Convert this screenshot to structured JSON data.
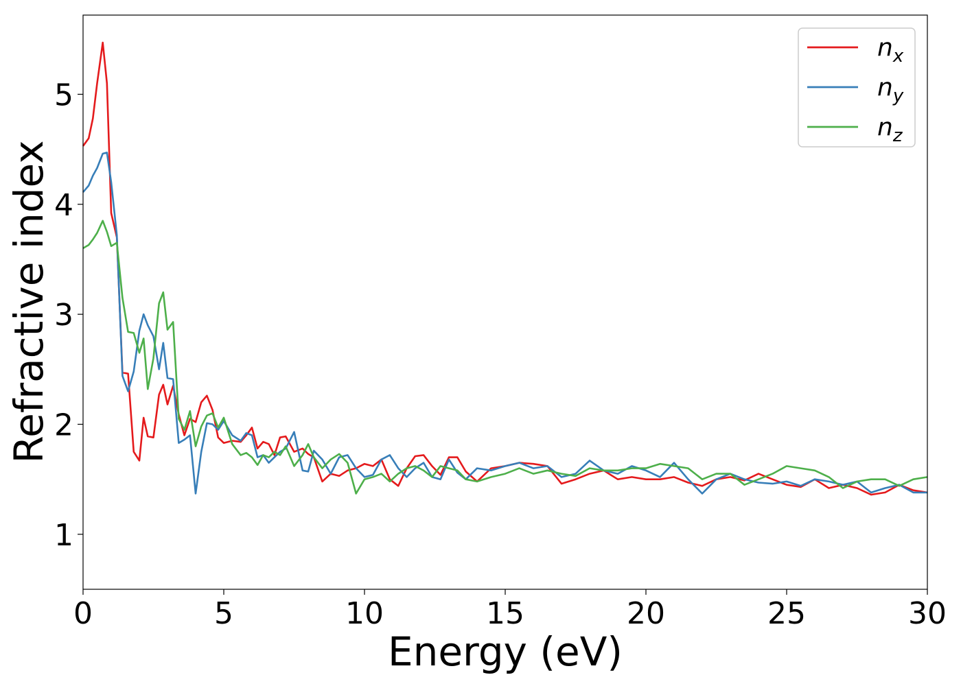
{
  "chart_data": {
    "type": "line",
    "title": "",
    "xlabel": "Energy (eV)",
    "ylabel": "Refractive index",
    "xlim": [
      0,
      30
    ],
    "ylim": [
      0.5,
      5.72
    ],
    "xticks": [
      0,
      5,
      10,
      15,
      20,
      25,
      30
    ],
    "yticks": [
      1,
      2,
      3,
      4,
      5
    ],
    "grid": false,
    "legend_position": "top-right",
    "series": [
      {
        "name": "n_x",
        "legend_base": "n",
        "legend_sub": "x",
        "color": "#e41a1c",
        "x": [
          0,
          0.2,
          0.35,
          0.5,
          0.7,
          0.85,
          1.0,
          1.2,
          1.4,
          1.6,
          1.8,
          2.0,
          2.15,
          2.3,
          2.5,
          2.7,
          2.85,
          3.0,
          3.2,
          3.4,
          3.6,
          3.8,
          4.0,
          4.2,
          4.4,
          4.6,
          4.8,
          5.0,
          5.3,
          5.6,
          5.8,
          6.0,
          6.2,
          6.4,
          6.6,
          6.8,
          7.0,
          7.2,
          7.5,
          7.8,
          8.0,
          8.2,
          8.5,
          8.8,
          9.1,
          9.4,
          9.7,
          10.0,
          10.3,
          10.6,
          10.9,
          11.2,
          11.5,
          11.8,
          12.1,
          12.4,
          12.7,
          13.0,
          13.3,
          13.6,
          14.0,
          14.5,
          15.0,
          15.5,
          16.0,
          16.5,
          17.0,
          17.5,
          18.0,
          18.5,
          19.0,
          19.5,
          20.0,
          20.5,
          21.0,
          21.5,
          22.0,
          22.5,
          23.0,
          23.5,
          24.0,
          24.5,
          25.0,
          25.5,
          26.0,
          26.5,
          27.0,
          27.5,
          28.0,
          28.5,
          29.0,
          29.5,
          30.0
        ],
        "y": [
          4.53,
          4.6,
          4.78,
          5.1,
          5.47,
          5.1,
          3.92,
          3.7,
          2.47,
          2.46,
          1.75,
          1.67,
          2.06,
          1.89,
          1.88,
          2.27,
          2.36,
          2.18,
          2.35,
          2.09,
          1.9,
          2.05,
          2.02,
          2.2,
          2.26,
          2.13,
          1.88,
          1.83,
          1.85,
          1.84,
          1.9,
          1.97,
          1.78,
          1.84,
          1.82,
          1.72,
          1.88,
          1.89,
          1.75,
          1.78,
          1.73,
          1.7,
          1.48,
          1.55,
          1.53,
          1.58,
          1.6,
          1.64,
          1.62,
          1.68,
          1.5,
          1.44,
          1.6,
          1.71,
          1.72,
          1.62,
          1.54,
          1.7,
          1.7,
          1.57,
          1.48,
          1.6,
          1.62,
          1.65,
          1.64,
          1.62,
          1.46,
          1.5,
          1.55,
          1.58,
          1.5,
          1.52,
          1.5,
          1.5,
          1.52,
          1.47,
          1.44,
          1.5,
          1.52,
          1.49,
          1.55,
          1.5,
          1.45,
          1.43,
          1.5,
          1.42,
          1.45,
          1.42,
          1.36,
          1.38,
          1.45,
          1.4,
          1.38
        ]
      },
      {
        "name": "n_y",
        "legend_base": "n",
        "legend_sub": "y",
        "color": "#377eb8",
        "x": [
          0,
          0.2,
          0.35,
          0.5,
          0.7,
          0.85,
          1.0,
          1.2,
          1.4,
          1.6,
          1.8,
          2.0,
          2.15,
          2.3,
          2.5,
          2.7,
          2.85,
          3.0,
          3.2,
          3.4,
          3.6,
          3.8,
          4.0,
          4.2,
          4.4,
          4.6,
          4.8,
          5.0,
          5.3,
          5.6,
          5.8,
          6.0,
          6.2,
          6.4,
          6.6,
          6.8,
          7.0,
          7.2,
          7.5,
          7.8,
          8.0,
          8.2,
          8.5,
          8.8,
          9.1,
          9.4,
          9.7,
          10.0,
          10.3,
          10.6,
          10.9,
          11.2,
          11.5,
          11.8,
          12.1,
          12.4,
          12.7,
          13.0,
          13.3,
          13.6,
          14.0,
          14.5,
          15.0,
          15.5,
          16.0,
          16.5,
          17.0,
          17.5,
          18.0,
          18.5,
          19.0,
          19.5,
          20.0,
          20.5,
          21.0,
          21.5,
          22.0,
          22.5,
          23.0,
          23.5,
          24.0,
          24.5,
          25.0,
          25.5,
          26.0,
          26.5,
          27.0,
          27.5,
          28.0,
          28.5,
          29.0,
          29.5,
          30.0
        ],
        "y": [
          4.11,
          4.17,
          4.26,
          4.33,
          4.46,
          4.47,
          4.2,
          3.72,
          2.44,
          2.3,
          2.48,
          2.85,
          3.0,
          2.9,
          2.8,
          2.5,
          2.74,
          2.42,
          2.41,
          1.83,
          1.86,
          1.9,
          1.37,
          1.75,
          2.01,
          2.0,
          1.95,
          2.03,
          1.9,
          1.85,
          1.92,
          1.9,
          1.7,
          1.72,
          1.65,
          1.7,
          1.75,
          1.78,
          1.93,
          1.58,
          1.57,
          1.76,
          1.68,
          1.55,
          1.7,
          1.72,
          1.6,
          1.52,
          1.54,
          1.68,
          1.72,
          1.6,
          1.52,
          1.6,
          1.65,
          1.52,
          1.5,
          1.68,
          1.56,
          1.5,
          1.6,
          1.58,
          1.62,
          1.65,
          1.6,
          1.62,
          1.52,
          1.55,
          1.67,
          1.58,
          1.55,
          1.62,
          1.58,
          1.52,
          1.65,
          1.5,
          1.37,
          1.5,
          1.55,
          1.5,
          1.47,
          1.46,
          1.48,
          1.44,
          1.5,
          1.48,
          1.45,
          1.48,
          1.38,
          1.42,
          1.45,
          1.38,
          1.38
        ]
      },
      {
        "name": "n_z",
        "legend_base": "n",
        "legend_sub": "z",
        "color": "#4daf4a",
        "x": [
          0,
          0.2,
          0.35,
          0.5,
          0.7,
          0.85,
          1.0,
          1.2,
          1.4,
          1.6,
          1.8,
          2.0,
          2.15,
          2.3,
          2.5,
          2.7,
          2.85,
          3.0,
          3.2,
          3.4,
          3.6,
          3.8,
          4.0,
          4.2,
          4.4,
          4.6,
          4.8,
          5.0,
          5.3,
          5.6,
          5.8,
          6.0,
          6.2,
          6.4,
          6.6,
          6.8,
          7.0,
          7.2,
          7.5,
          7.8,
          8.0,
          8.2,
          8.5,
          8.8,
          9.1,
          9.4,
          9.7,
          10.0,
          10.3,
          10.6,
          10.9,
          11.2,
          11.5,
          11.8,
          12.1,
          12.4,
          12.7,
          13.0,
          13.3,
          13.6,
          14.0,
          14.5,
          15.0,
          15.5,
          16.0,
          16.5,
          17.0,
          17.5,
          18.0,
          18.5,
          19.0,
          19.5,
          20.0,
          20.5,
          21.0,
          21.5,
          22.0,
          22.5,
          23.0,
          23.5,
          24.0,
          24.5,
          25.0,
          25.5,
          26.0,
          26.5,
          27.0,
          27.5,
          28.0,
          28.5,
          29.0,
          29.5,
          30.0
        ],
        "y": [
          3.6,
          3.63,
          3.68,
          3.74,
          3.85,
          3.75,
          3.62,
          3.65,
          3.15,
          2.84,
          2.83,
          2.65,
          2.78,
          2.32,
          2.6,
          3.1,
          3.2,
          2.86,
          2.93,
          2.05,
          1.95,
          2.12,
          1.8,
          1.98,
          2.08,
          2.1,
          1.97,
          2.06,
          1.82,
          1.72,
          1.74,
          1.7,
          1.63,
          1.72,
          1.7,
          1.75,
          1.72,
          1.8,
          1.62,
          1.72,
          1.82,
          1.7,
          1.6,
          1.68,
          1.73,
          1.65,
          1.37,
          1.5,
          1.52,
          1.55,
          1.48,
          1.55,
          1.6,
          1.62,
          1.58,
          1.52,
          1.62,
          1.6,
          1.58,
          1.5,
          1.48,
          1.52,
          1.55,
          1.6,
          1.55,
          1.58,
          1.55,
          1.53,
          1.6,
          1.58,
          1.58,
          1.6,
          1.6,
          1.64,
          1.62,
          1.6,
          1.5,
          1.55,
          1.55,
          1.45,
          1.5,
          1.55,
          1.62,
          1.6,
          1.58,
          1.52,
          1.42,
          1.48,
          1.5,
          1.5,
          1.44,
          1.5,
          1.52
        ]
      }
    ]
  }
}
